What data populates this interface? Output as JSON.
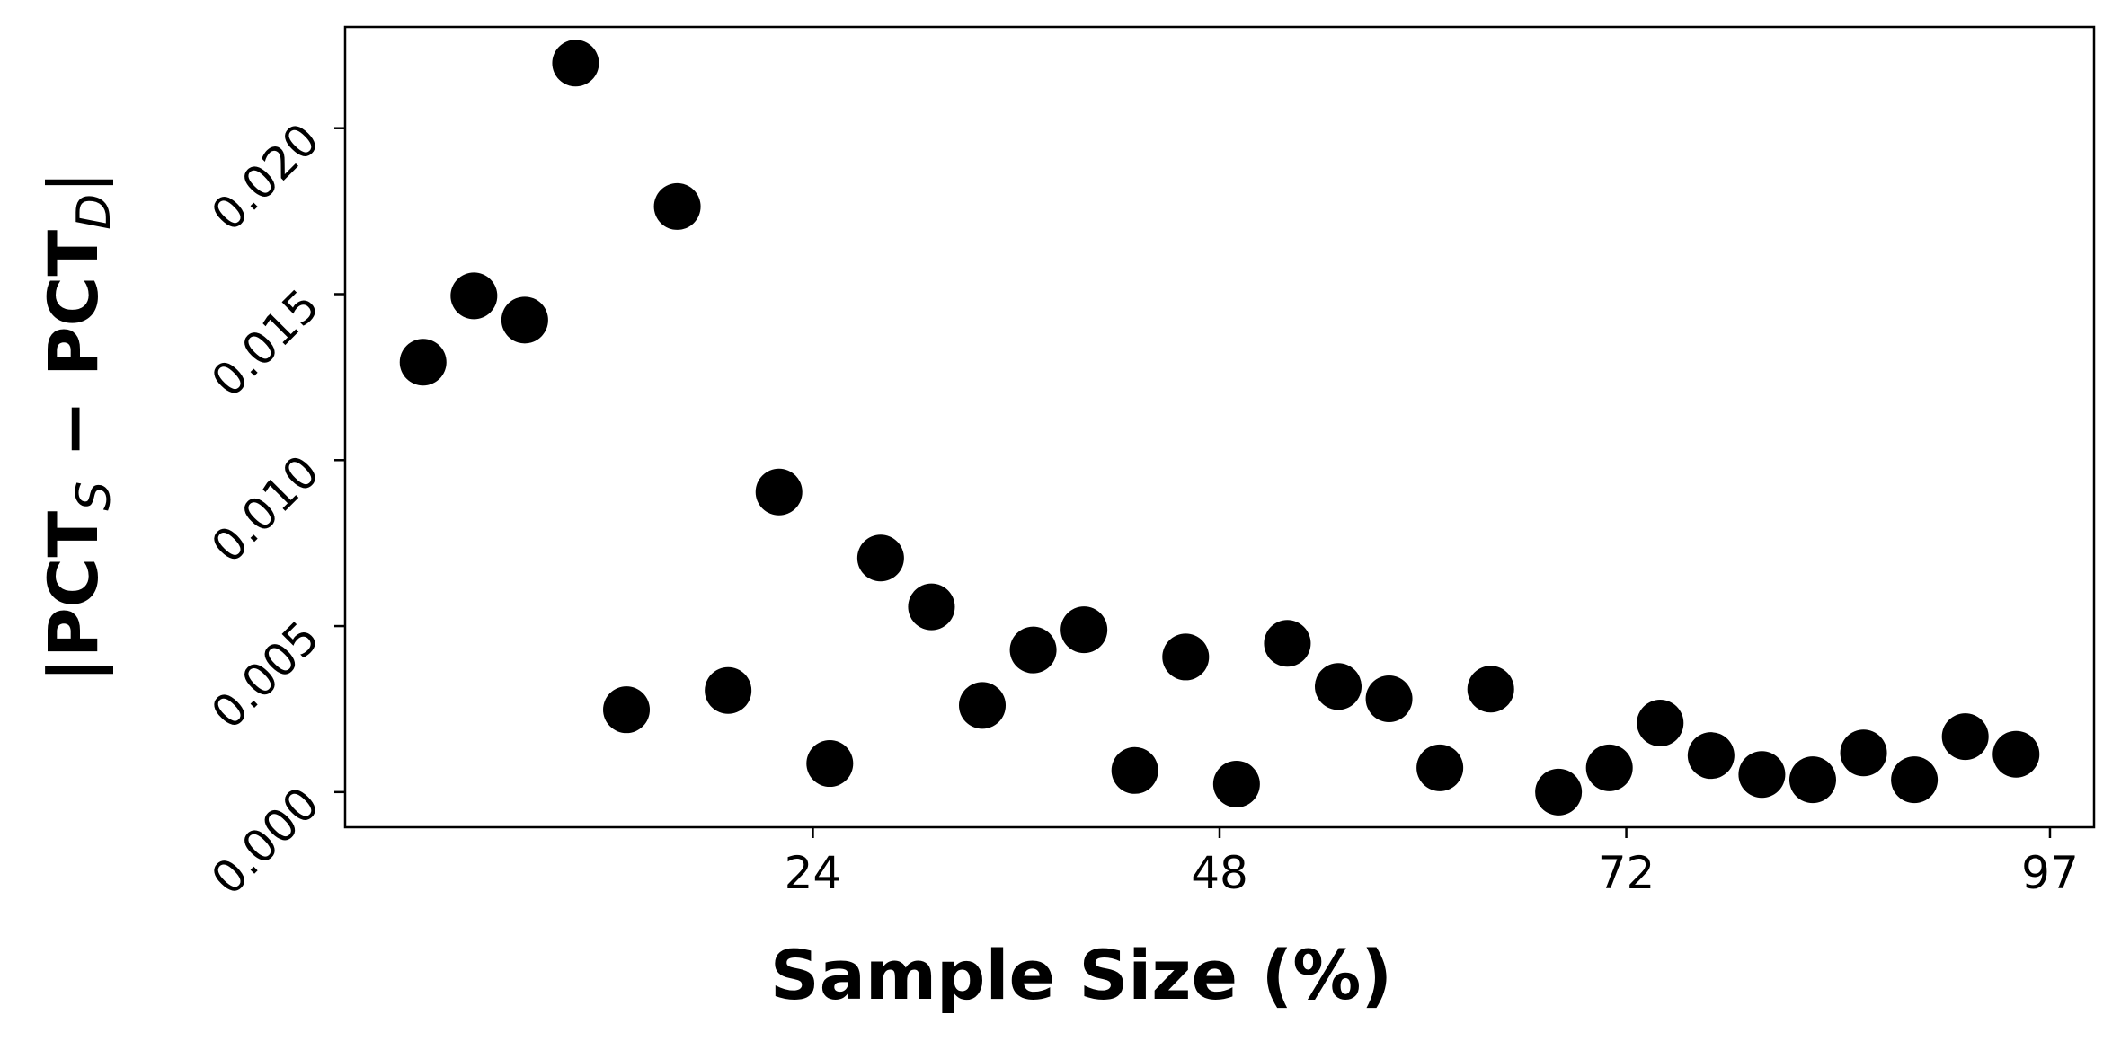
{
  "chart_data": {
    "type": "scatter",
    "xlabel": "Sample Size (%)",
    "ylabel": [
      "|PCT",
      "S",
      " − PCT",
      "D",
      "|"
    ],
    "x": [
      1,
      4,
      7,
      10,
      13,
      16,
      19,
      22,
      25,
      28,
      31,
      34,
      37,
      40,
      43,
      46,
      49,
      52,
      55,
      58,
      61,
      64,
      68,
      71,
      74,
      77,
      80,
      83,
      86,
      89,
      92,
      95
    ],
    "values": [
      0.01295,
      0.01495,
      0.01422,
      0.02196,
      0.00248,
      0.01764,
      0.00306,
      0.00904,
      0.00086,
      0.00705,
      0.00558,
      0.00261,
      0.00428,
      0.00489,
      0.00065,
      0.00407,
      0.00024,
      0.00448,
      0.00318,
      0.00281,
      0.00073,
      0.0031,
      0.0,
      0.00073,
      0.00208,
      0.0011,
      0.00053,
      0.00037,
      0.00118,
      0.00037,
      0.00167,
      0.00114
    ],
    "color": "#000000",
    "xlim": [
      -3.6,
      99.6
    ],
    "xticks": [
      24,
      48,
      72,
      97
    ],
    "ylim": [
      -0.00106,
      0.02305
    ],
    "yticks": [
      {
        "value": 0,
        "label": "0.000"
      },
      {
        "value": 0.005,
        "label": "0.005"
      },
      {
        "value": 0.01,
        "label": "0.010"
      },
      {
        "value": 0.015,
        "label": "0.015"
      },
      {
        "value": 0.02,
        "label": "0.020"
      }
    ],
    "grid": false
  }
}
